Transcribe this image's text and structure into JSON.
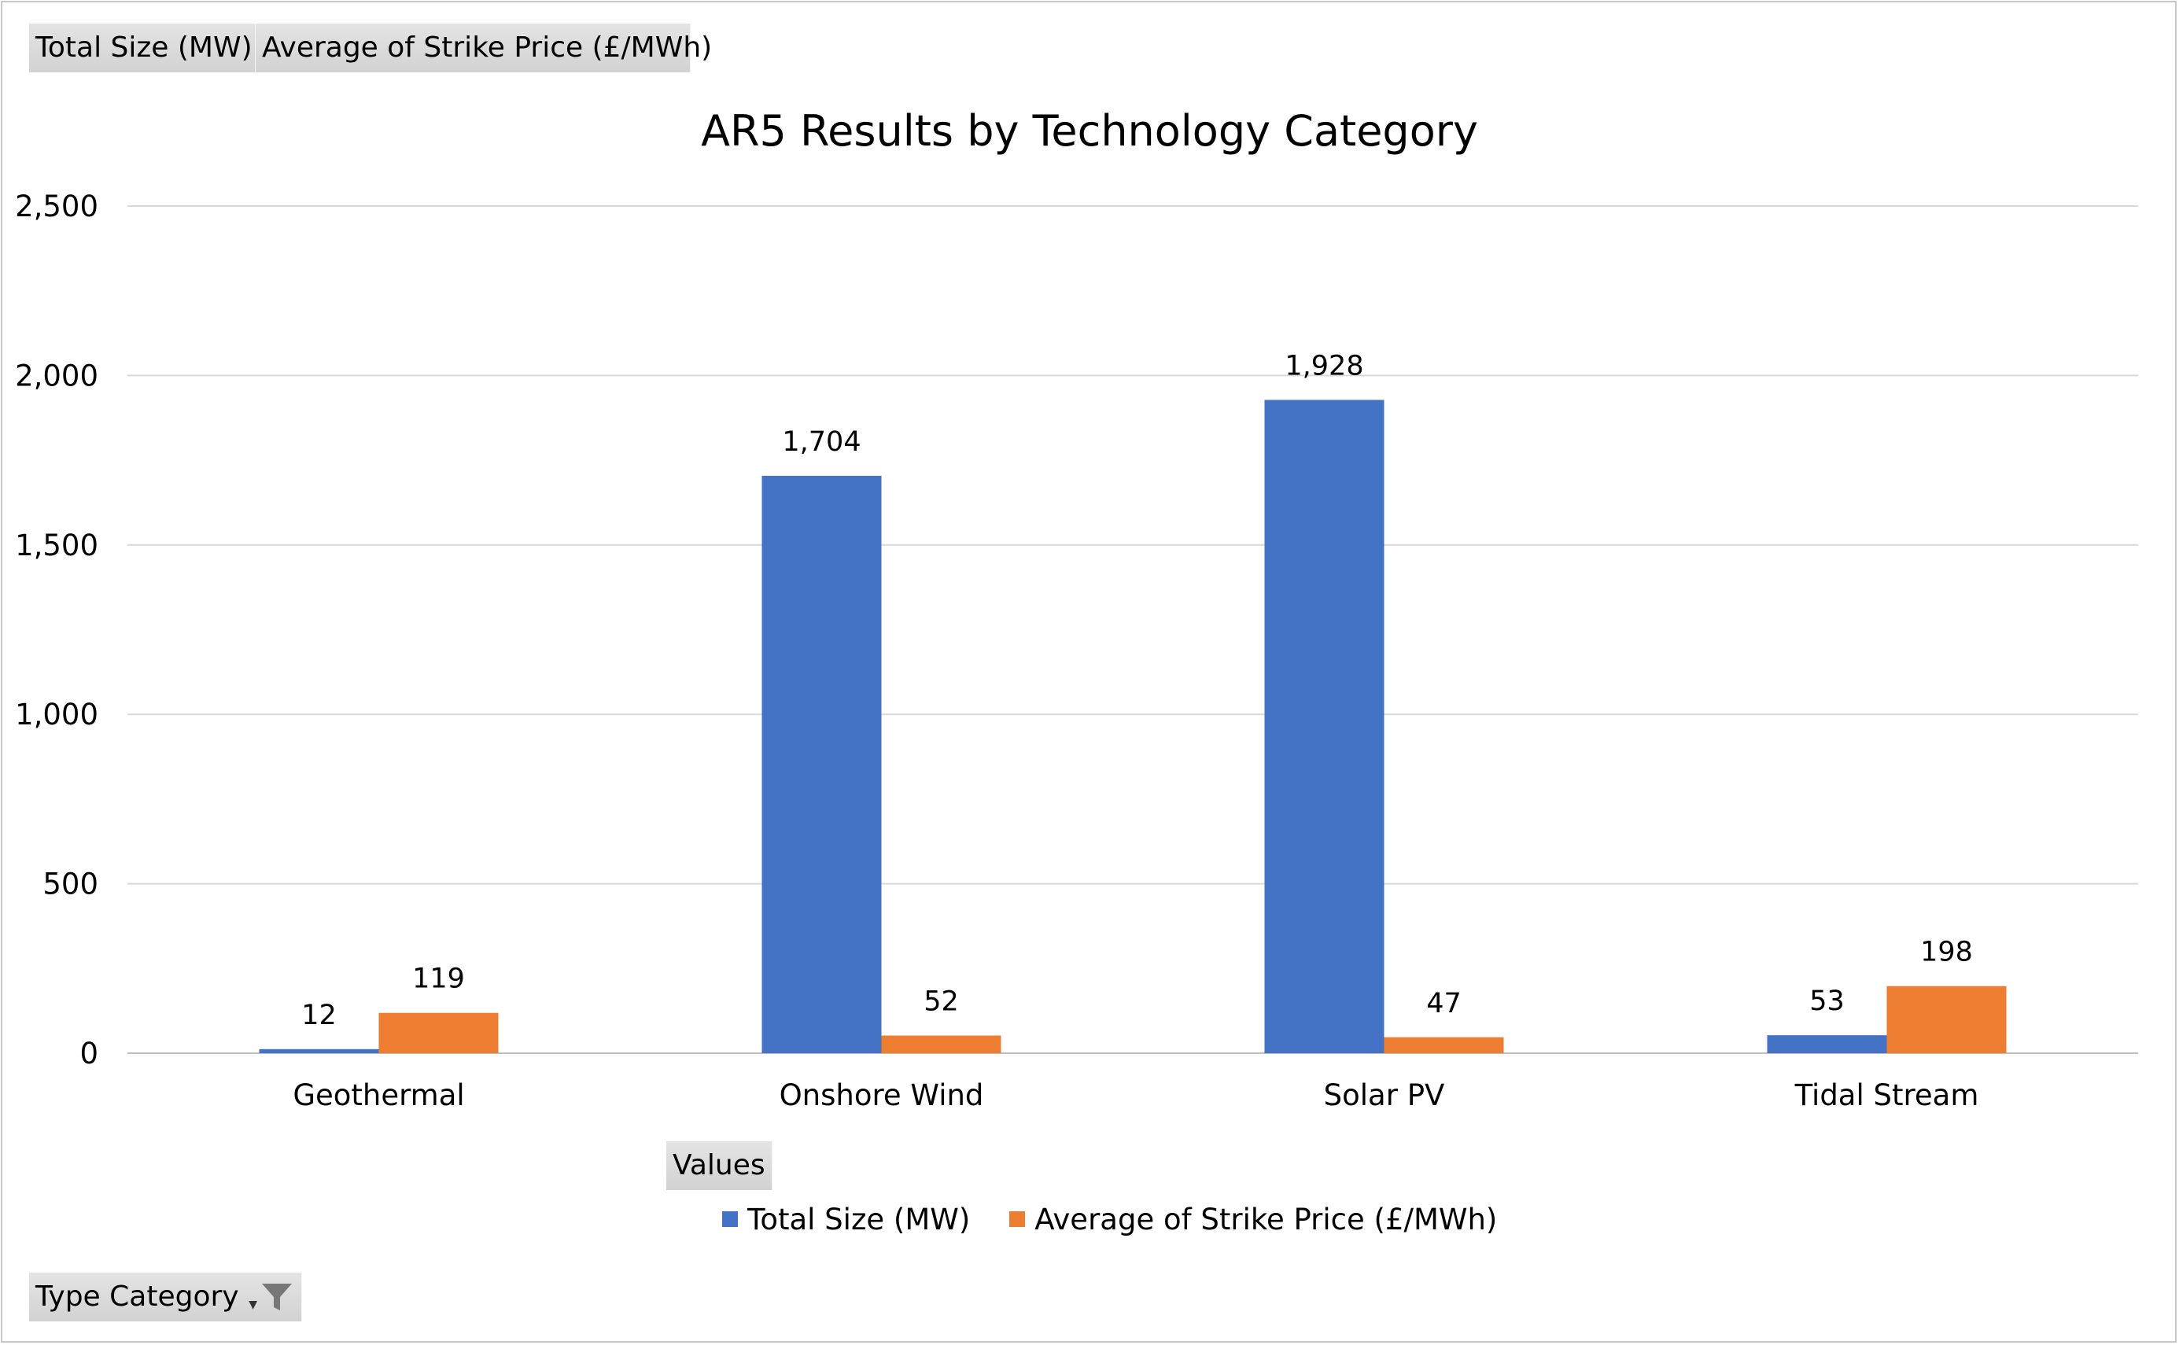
{
  "pivot_fields": {
    "values_field_1": "Total Size (MW)",
    "values_field_2": "Average of Strike Price (£/MWh)",
    "values_button": "Values",
    "axis_field": "Type Category",
    "filter_icon": "filter-icon",
    "dropdown_icon": "chevron-down-icon"
  },
  "legend": {
    "series_1": "Total Size (MW)",
    "series_2": "Average of Strike Price (£/MWh)"
  },
  "colors": {
    "series_1": "#4472C4",
    "series_2": "#ED7D31",
    "gridline": "#D9D9D9",
    "axis": "#BFBFBF"
  },
  "chart_data": {
    "type": "bar",
    "title": "AR5 Results by Technology Category",
    "xlabel": "",
    "ylabel": "",
    "categories": [
      "Geothermal",
      "Onshore Wind",
      "Solar PV",
      "Tidal Stream"
    ],
    "series": [
      {
        "name": "Total Size (MW)",
        "values": [
          12,
          1704,
          1928,
          53
        ],
        "labels": [
          "12",
          "1,704",
          "1,928",
          "53"
        ]
      },
      {
        "name": "Average of Strike Price (£/MWh)",
        "values": [
          119,
          52,
          47,
          198
        ],
        "labels": [
          "119",
          "52",
          "47",
          "198"
        ]
      }
    ],
    "ylim": [
      0,
      2500
    ],
    "yticks": [
      0,
      500,
      1000,
      1500,
      2000,
      2500
    ],
    "ytick_labels": [
      "0",
      "500",
      "1,000",
      "1,500",
      "2,000",
      "2,500"
    ],
    "grid": true,
    "legend_position": "bottom"
  }
}
